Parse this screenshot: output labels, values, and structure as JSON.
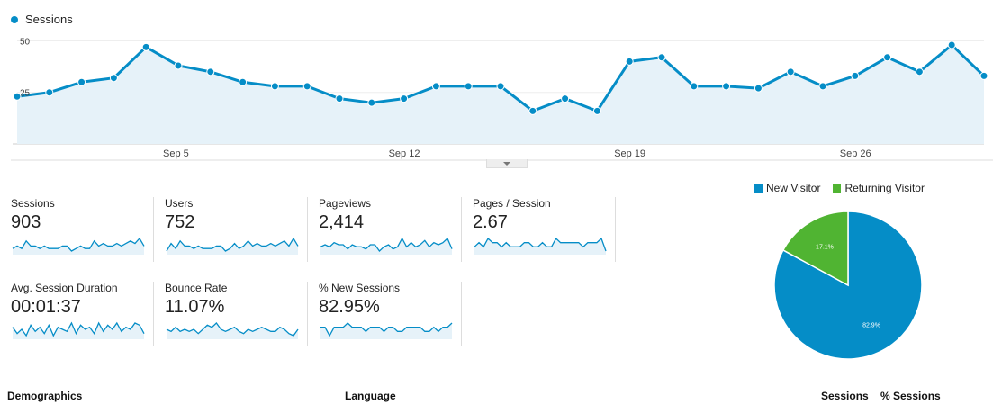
{
  "legend": {
    "label": "Sessions",
    "color": "#058dc7"
  },
  "chart_data": [
    {
      "type": "area",
      "series": [
        {
          "name": "Sessions",
          "values": [
            23,
            25,
            30,
            32,
            47,
            38,
            35,
            30,
            28,
            28,
            22,
            20,
            22,
            28,
            28,
            28,
            16,
            22,
            16,
            40,
            42,
            28,
            28,
            27,
            35,
            28,
            33,
            42,
            35,
            48,
            33
          ]
        }
      ],
      "x_labels": [
        {
          "index": 5,
          "label": "Sep 5"
        },
        {
          "index": 12,
          "label": "Sep 12"
        },
        {
          "index": 19,
          "label": "Sep 19"
        },
        {
          "index": 26,
          "label": "Sep 26"
        }
      ],
      "y_ticks": [
        25,
        50
      ],
      "ylim": [
        0,
        55
      ],
      "grid": true
    },
    {
      "type": "pie",
      "categories": [
        "New Visitor",
        "Returning Visitor"
      ],
      "values": [
        82.9,
        17.1
      ],
      "data_labels": [
        "82.9%",
        "17.1%"
      ],
      "colors": [
        "#058dc7",
        "#50b432"
      ],
      "legend_position": "top"
    }
  ],
  "metrics": [
    {
      "label": "Sessions",
      "value": "903",
      "spark": [
        4,
        5,
        4,
        7,
        5,
        5,
        4,
        5,
        4,
        4,
        4,
        5,
        5,
        3,
        4,
        5,
        4,
        4,
        7,
        5,
        6,
        5,
        5,
        6,
        5,
        6,
        7,
        6,
        8,
        5
      ]
    },
    {
      "label": "Users",
      "value": "752",
      "spark": [
        3,
        6,
        4,
        7,
        5,
        5,
        4,
        5,
        4,
        4,
        4,
        5,
        5,
        3,
        4,
        6,
        4,
        5,
        7,
        5,
        6,
        5,
        5,
        6,
        5,
        6,
        7,
        5,
        8,
        5
      ]
    },
    {
      "label": "Pageviews",
      "value": "2,414",
      "spark": [
        4,
        5,
        4,
        6,
        5,
        5,
        3,
        5,
        4,
        4,
        3,
        5,
        5,
        2,
        4,
        5,
        3,
        4,
        8,
        4,
        6,
        4,
        5,
        7,
        4,
        6,
        5,
        6,
        8,
        3
      ]
    },
    {
      "label": "Pages / Session",
      "value": "2.67",
      "spark": [
        5,
        6,
        5,
        7,
        6,
        6,
        5,
        6,
        5,
        5,
        5,
        6,
        6,
        5,
        5,
        6,
        5,
        5,
        7,
        6,
        6,
        6,
        6,
        6,
        5,
        6,
        6,
        6,
        7,
        4
      ]
    },
    {
      "label": "Avg. Session Duration",
      "value": "00:01:37",
      "spark": [
        6,
        3,
        5,
        2,
        7,
        4,
        6,
        3,
        7,
        2,
        6,
        5,
        4,
        8,
        3,
        7,
        5,
        6,
        3,
        8,
        4,
        7,
        5,
        8,
        4,
        6,
        5,
        8,
        7,
        3
      ]
    },
    {
      "label": "Bounce Rate",
      "value": "11.07%",
      "spark": [
        5,
        4,
        6,
        4,
        5,
        4,
        5,
        3,
        5,
        7,
        6,
        8,
        5,
        4,
        5,
        6,
        4,
        3,
        5,
        4,
        5,
        6,
        5,
        4,
        4,
        6,
        5,
        3,
        2,
        5
      ]
    },
    {
      "label": "% New Sessions",
      "value": "82.95%",
      "spark": [
        6,
        6,
        4,
        6,
        6,
        6,
        7,
        6,
        6,
        6,
        5,
        6,
        6,
        6,
        5,
        6,
        6,
        5,
        5,
        6,
        6,
        6,
        6,
        5,
        5,
        6,
        5,
        6,
        6,
        7
      ]
    }
  ],
  "bottom": {
    "demographics": "Demographics",
    "language": "Language",
    "sessions": "Sessions",
    "pct_sessions": "% Sessions"
  }
}
